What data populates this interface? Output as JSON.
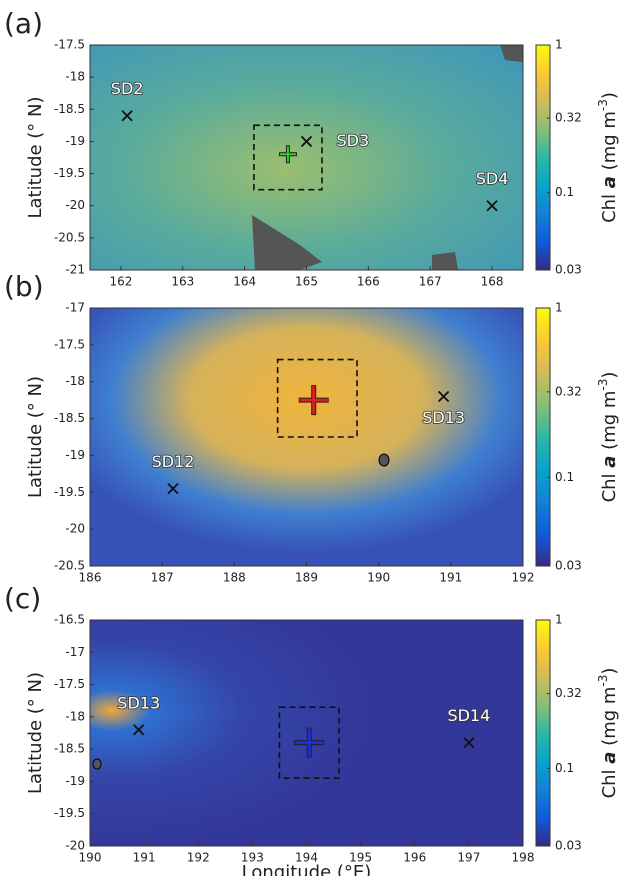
{
  "chart_data": [
    {
      "type": "map",
      "panel_label": "(a)",
      "ylabel": "Latitude (° N)",
      "xlim": [
        161.5,
        168.5
      ],
      "xticks": [
        162,
        163,
        164,
        165,
        166,
        167,
        168
      ],
      "ylim": [
        -21,
        -17.5
      ],
      "yticks": [
        -17.5,
        -18,
        -18.5,
        -19,
        -19.5,
        -20,
        -20.5,
        -21
      ],
      "colorbar": {
        "lim": [
          0.03,
          1
        ],
        "log": true,
        "ticks": [
          0.03,
          0.1,
          0.32,
          1
        ],
        "label": {
          "name": "Chl",
          "var": "a",
          "unit": "(mg m",
          "exp": "-3",
          "close": ")"
        }
      },
      "colormap": [
        "#352a87",
        "#0f5cdd",
        "#1481d6",
        "#06a4ca",
        "#2eb7a4",
        "#87bf77",
        "#d1bb59",
        "#fec832",
        "#f9fb0e"
      ],
      "stations": [
        {
          "name": "SD2",
          "lon": 162.1,
          "lat": -18.6,
          "label_pos": "above"
        },
        {
          "name": "SD3",
          "lon": 165.0,
          "lat": -19.0,
          "label_pos": "right"
        },
        {
          "name": "SD4",
          "lon": 168.0,
          "lat": -20.0,
          "label_pos": "above"
        }
      ],
      "cross": {
        "lon": 164.7,
        "lat": -19.2,
        "color": "#2ecc2e"
      },
      "box": {
        "xlim": [
          164.15,
          165.25
        ],
        "ylim": [
          -19.75,
          -18.75
        ]
      }
    },
    {
      "type": "map",
      "panel_label": "(b)",
      "ylabel": "Latitude (° N)",
      "xlim": [
        186,
        192
      ],
      "xticks": [
        186,
        187,
        188,
        189,
        190,
        191,
        192
      ],
      "ylim": [
        -20.5,
        -17
      ],
      "yticks": [
        -17,
        -17.5,
        -18,
        -18.5,
        -19,
        -19.5,
        -20,
        -20.5
      ],
      "colorbar": {
        "lim": [
          0.03,
          1
        ],
        "log": true,
        "ticks": [
          0.03,
          0.1,
          0.32,
          1
        ],
        "label": {
          "name": "Chl",
          "var": "a",
          "unit": "(mg m",
          "exp": "-3",
          "close": ")"
        }
      },
      "colormap": [
        "#352a87",
        "#0f5cdd",
        "#1481d6",
        "#06a4ca",
        "#2eb7a4",
        "#87bf77",
        "#d1bb59",
        "#fec832",
        "#f9fb0e"
      ],
      "stations": [
        {
          "name": "SD12",
          "lon": 187.15,
          "lat": -19.45,
          "label_pos": "above"
        },
        {
          "name": "SD13",
          "lon": 190.9,
          "lat": -18.2,
          "label_pos": "below"
        }
      ],
      "cross": {
        "lon": 189.1,
        "lat": -18.25,
        "color": "#e02020"
      },
      "box": {
        "xlim": [
          188.6,
          189.7
        ],
        "ylim": [
          -18.75,
          -17.7
        ]
      }
    },
    {
      "type": "map",
      "panel_label": "(c)",
      "ylabel": "Latitude (° N)",
      "xlabel": "Longitude (°E)",
      "xlim": [
        190,
        198
      ],
      "xticks": [
        190,
        191,
        192,
        193,
        194,
        195,
        196,
        197,
        198
      ],
      "ylim": [
        -20,
        -16.5
      ],
      "yticks": [
        -16.5,
        -17,
        -17.5,
        -18,
        -18.5,
        -19,
        -19.5,
        -20
      ],
      "colorbar": {
        "lim": [
          0.03,
          1
        ],
        "log": true,
        "ticks": [
          0.03,
          0.1,
          0.32,
          1
        ],
        "label": {
          "name": "Chl",
          "var": "a",
          "unit": "(mg m",
          "exp": "-3",
          "close": ")"
        }
      },
      "colormap": [
        "#352a87",
        "#0f5cdd",
        "#1481d6",
        "#06a4ca",
        "#2eb7a4",
        "#87bf77",
        "#d1bb59",
        "#fec832",
        "#f9fb0e"
      ],
      "stations": [
        {
          "name": "SD13",
          "lon": 190.9,
          "lat": -18.2,
          "label_pos": "above"
        },
        {
          "name": "SD14",
          "lon": 197.0,
          "lat": -18.4,
          "label_pos": "above"
        }
      ],
      "cross": {
        "lon": 194.05,
        "lat": -18.4,
        "color": "#1a2ee0"
      },
      "box": {
        "xlim": [
          193.5,
          194.6
        ],
        "ylim": [
          -18.95,
          -17.85
        ]
      }
    }
  ]
}
